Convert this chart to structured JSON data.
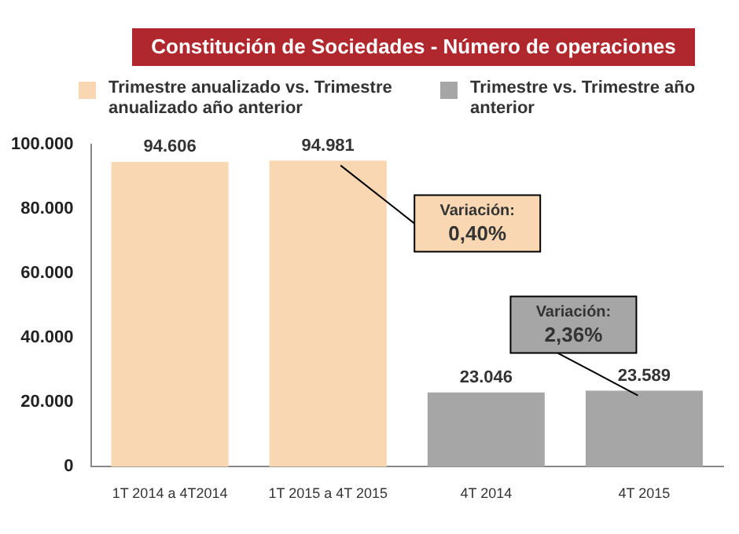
{
  "chart_data": {
    "type": "bar",
    "title": "Constitución de Sociedades - Número de operaciones",
    "categories": [
      "1T 2014 a 4T2014",
      "1T 2015 a 4T 2015",
      "4T 2014",
      "4T 2015"
    ],
    "series": [
      {
        "name": "Trimestre anualizado vs. Trimestre anualizado año anterior",
        "color": "#f9d7b2",
        "values": [
          94606,
          94981,
          null,
          null
        ],
        "value_labels": [
          "94.606",
          "94.981",
          null,
          null
        ]
      },
      {
        "name": "Trimestre vs. Trimestre año anterior",
        "color": "#a6a6a6",
        "values": [
          null,
          null,
          23046,
          23589
        ],
        "value_labels": [
          null,
          null,
          "23.046",
          "23.589"
        ]
      }
    ],
    "ylim": [
      0,
      100000
    ],
    "yticks": [
      {
        "value": 0,
        "label": "0"
      },
      {
        "value": 20000,
        "label": "20.000"
      },
      {
        "value": 40000,
        "label": "40.000"
      },
      {
        "value": 60000,
        "label": "60.000"
      },
      {
        "value": 80000,
        "label": "80.000"
      },
      {
        "value": 100000,
        "label": "100.000"
      }
    ],
    "grid": false,
    "legend": "top",
    "annotations": [
      {
        "text": "Variación:\n0,40%",
        "x": "1T 2015 a 4T 2015",
        "y": 94981
      },
      {
        "text": "Variación:\n2,36%",
        "x": "4T 2015",
        "y": 23589
      }
    ]
  }
}
